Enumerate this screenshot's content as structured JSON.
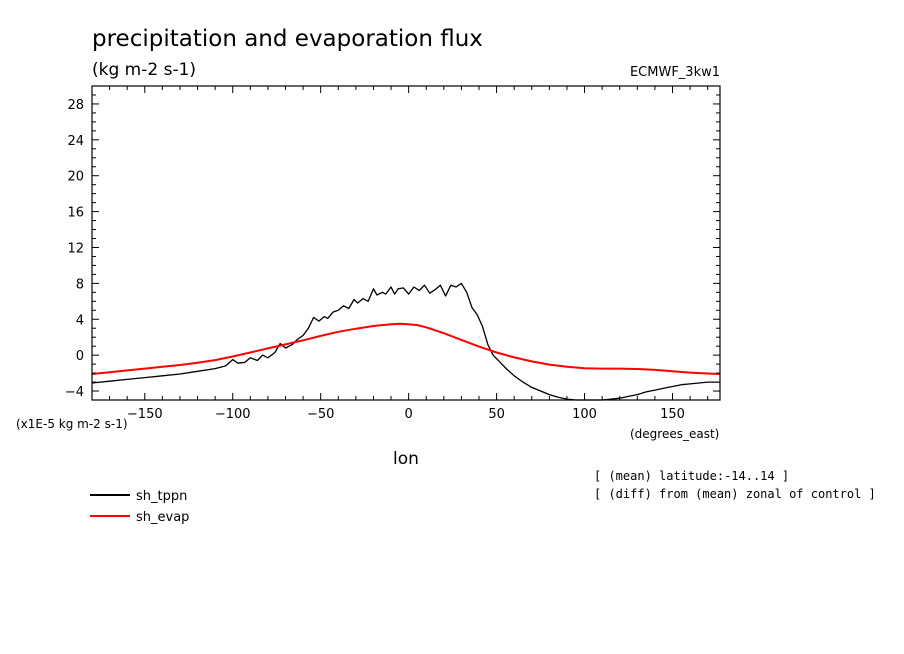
{
  "chart_data": {
    "type": "line",
    "title": "precipitation and evaporation flux",
    "units": "(kg m-2 s-1)",
    "experiment": "ECMWF_3kw1",
    "xlabel": "lon",
    "xunits": "(degrees_east)",
    "yscale_label": "(x1E-5 kg m-2 s-1)",
    "xlim": [
      -180,
      177
    ],
    "ylim": [
      -5,
      30
    ],
    "xticks": [
      -150,
      -100,
      -50,
      0,
      50,
      100,
      150
    ],
    "yticks": [
      -4,
      0,
      4,
      8,
      12,
      16,
      20,
      24,
      28
    ],
    "xtick_labels": [
      "−150",
      "−100",
      "−50",
      "0",
      "50",
      "100",
      "150"
    ],
    "ytick_labels": [
      "−4",
      "0",
      "4",
      "8",
      "12",
      "16",
      "20",
      "24",
      "28"
    ],
    "series": [
      {
        "name": "sh_tppn",
        "color": "#000000",
        "x": [
          -180,
          -170,
          -160,
          -150,
          -140,
          -130,
          -120,
          -110,
          -104,
          -100,
          -97,
          -93,
          -90,
          -86,
          -83,
          -80,
          -76,
          -73,
          -70,
          -66,
          -63,
          -60,
          -57,
          -54,
          -51,
          -48,
          -46,
          -43,
          -40,
          -37,
          -34,
          -31,
          -29,
          -26,
          -23,
          -20,
          -18,
          -15,
          -13,
          -10,
          -8,
          -6,
          -3,
          0,
          3,
          6,
          9,
          12,
          15,
          18,
          21,
          24,
          27,
          30,
          33,
          36,
          39,
          42,
          45,
          48,
          52,
          56,
          60,
          65,
          70,
          75,
          80,
          85,
          90,
          95,
          100,
          105,
          110,
          115,
          120,
          125,
          130,
          135,
          140,
          145,
          150,
          155,
          160,
          165,
          170,
          177
        ],
        "values": [
          -3.1,
          -2.9,
          -2.7,
          -2.5,
          -2.3,
          -2.1,
          -1.8,
          -1.5,
          -1.2,
          -0.5,
          -0.9,
          -0.8,
          -0.3,
          -0.6,
          0.0,
          -0.3,
          0.3,
          1.3,
          0.8,
          1.2,
          1.8,
          2.2,
          3.0,
          4.2,
          3.8,
          4.3,
          4.1,
          4.8,
          5.0,
          5.5,
          5.2,
          6.2,
          5.8,
          6.3,
          6.0,
          7.4,
          6.7,
          7.0,
          6.8,
          7.6,
          6.8,
          7.4,
          7.5,
          6.8,
          7.6,
          7.2,
          7.8,
          6.9,
          7.3,
          7.8,
          6.6,
          7.8,
          7.6,
          8.0,
          7.0,
          5.3,
          4.5,
          3.2,
          1.2,
          0.0,
          -0.8,
          -1.6,
          -2.3,
          -3.0,
          -3.6,
          -4.0,
          -4.4,
          -4.7,
          -4.9,
          -5.0,
          -5.0,
          -5.0,
          -5.0,
          -4.9,
          -4.8,
          -4.6,
          -4.4,
          -4.1,
          -3.9,
          -3.7,
          -3.5,
          -3.3,
          -3.2,
          -3.1,
          -3.0,
          -3.0
        ]
      },
      {
        "name": "sh_evap",
        "color": "#ff0000",
        "x": [
          -180,
          -170,
          -160,
          -150,
          -140,
          -130,
          -120,
          -110,
          -100,
          -90,
          -80,
          -70,
          -60,
          -50,
          -40,
          -30,
          -20,
          -10,
          -5,
          0,
          5,
          10,
          20,
          30,
          40,
          50,
          60,
          70,
          80,
          90,
          100,
          110,
          120,
          130,
          140,
          150,
          160,
          170,
          177
        ],
        "values": [
          -2.1,
          -1.9,
          -1.7,
          -1.5,
          -1.3,
          -1.1,
          -0.85,
          -0.55,
          -0.15,
          0.3,
          0.75,
          1.2,
          1.65,
          2.15,
          2.6,
          2.95,
          3.25,
          3.45,
          3.5,
          3.45,
          3.35,
          3.1,
          2.45,
          1.7,
          0.95,
          0.3,
          -0.25,
          -0.7,
          -1.05,
          -1.3,
          -1.45,
          -1.5,
          -1.5,
          -1.55,
          -1.65,
          -1.8,
          -1.95,
          -2.05,
          -2.1
        ]
      }
    ],
    "legend_placement": "bottom-left",
    "annotations": [
      "[ (mean) latitude:-14..14 ]",
      "[ (diff) from (mean) zonal of control ]"
    ],
    "grid": false
  }
}
